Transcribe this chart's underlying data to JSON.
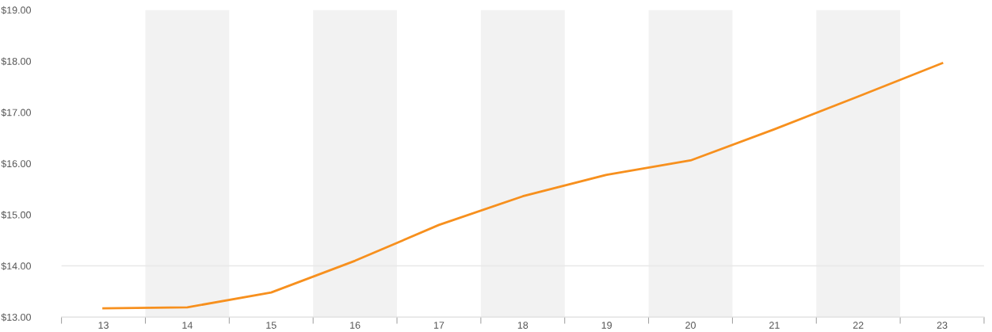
{
  "chart_data": {
    "type": "line",
    "categories": [
      "13",
      "14",
      "15",
      "16",
      "17",
      "18",
      "19",
      "20",
      "21",
      "22",
      "23"
    ],
    "series": [
      {
        "color": "#f7901e",
        "values": [
          13.17,
          13.19,
          13.48,
          14.1,
          14.8,
          15.36,
          15.78,
          16.06,
          16.67,
          17.31,
          17.96
        ]
      }
    ],
    "ylim": [
      13,
      19
    ],
    "yticks": [
      {
        "value": 13,
        "label": "$13.00"
      },
      {
        "value": 14,
        "label": "$14.00"
      },
      {
        "value": 15,
        "label": "$15.00"
      },
      {
        "value": 16,
        "label": "$16.00"
      },
      {
        "value": 17,
        "label": "$17.00"
      },
      {
        "value": 18,
        "label": "$18.00"
      },
      {
        "value": 19,
        "label": "$19.00"
      }
    ],
    "bands": [
      {
        "axis": "x",
        "from": "14",
        "to": "14",
        "color": "#f2f2f2"
      },
      {
        "axis": "x",
        "from": "16",
        "to": "16",
        "color": "#f2f2f2"
      },
      {
        "axis": "x",
        "from": "18",
        "to": "18",
        "color": "#f2f2f2"
      },
      {
        "axis": "x",
        "from": "20",
        "to": "20",
        "color": "#f2f2f2"
      },
      {
        "axis": "x",
        "from": "22",
        "to": "22",
        "color": "#f2f2f2"
      }
    ],
    "ref_lines": [
      {
        "axis": "y",
        "value": 14,
        "color": "#e8e8e8"
      }
    ],
    "marker": "none",
    "line_style": "solid"
  }
}
